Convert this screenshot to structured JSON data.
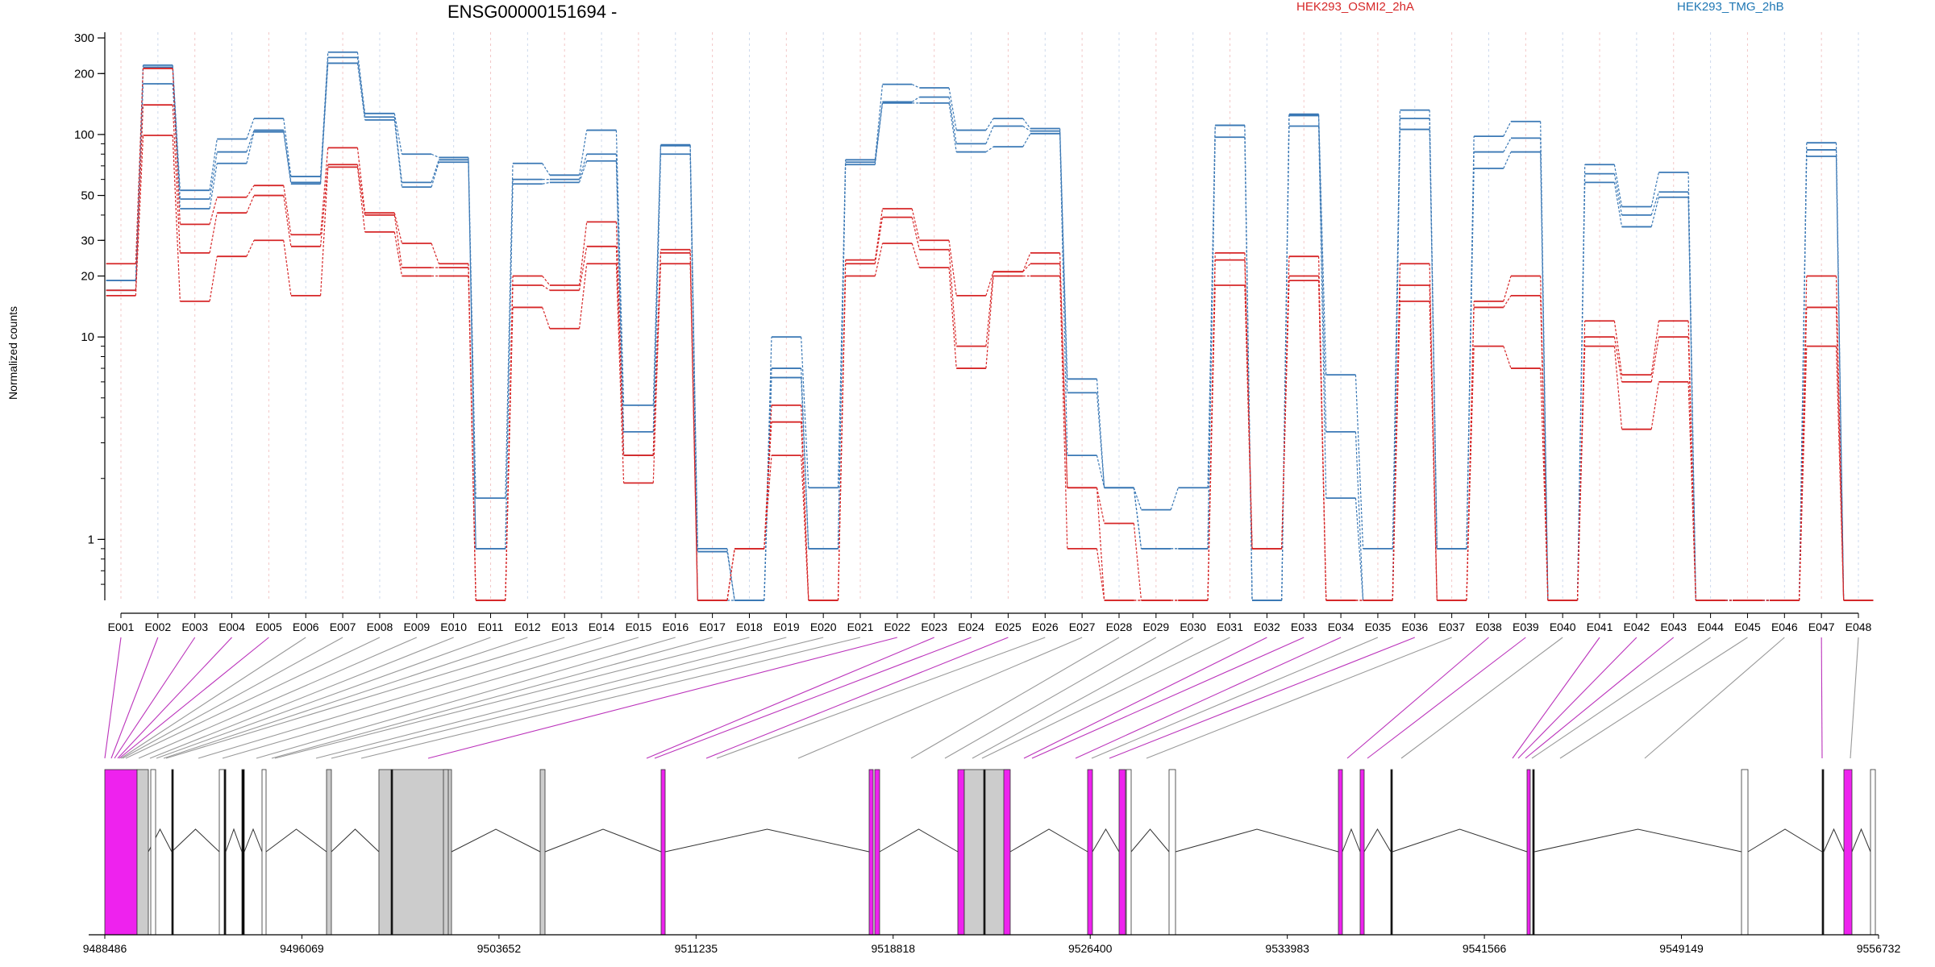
{
  "chart_data": {
    "type": "line",
    "title": "ENSG00000151694 -",
    "ylabel": "Normalized counts",
    "yscale": "log",
    "ylim": [
      0.5,
      320
    ],
    "yticks": [
      {
        "v": 1,
        "label": "1"
      },
      {
        "v": 10,
        "label": "10"
      },
      {
        "v": 20,
        "label": "20"
      },
      {
        "v": 30,
        "label": "30"
      },
      {
        "v": 50,
        "label": "50"
      },
      {
        "v": 100,
        "label": "100"
      },
      {
        "v": 200,
        "label": "200"
      },
      {
        "v": 300,
        "label": "300"
      }
    ],
    "categories": [
      "E001",
      "E002",
      "E003",
      "E004",
      "E005",
      "E006",
      "E007",
      "E008",
      "E009",
      "E010",
      "E011",
      "E012",
      "E013",
      "E014",
      "E015",
      "E016",
      "E017",
      "E018",
      "E019",
      "E020",
      "E021",
      "E022",
      "E023",
      "E024",
      "E025",
      "E026",
      "E027",
      "E028",
      "E029",
      "E030",
      "E031",
      "E032",
      "E033",
      "E034",
      "E035",
      "E036",
      "E037",
      "E038",
      "E039",
      "E040",
      "E041",
      "E042",
      "E043",
      "E044",
      "E045",
      "E046",
      "E047",
      "E048"
    ],
    "legend": [
      {
        "name": "HEK293_OSMI2_2hA",
        "color": "#d62728"
      },
      {
        "name": "HEK293_TMG_2hB",
        "color": "#1f77b4"
      }
    ],
    "series": [
      {
        "group": "HEK293_TMG_2hB",
        "color": "#3a78b5",
        "values": [
          19,
          220,
          53,
          95,
          120,
          62,
          255,
          127,
          80,
          77,
          1.6,
          72,
          63,
          105,
          4.6,
          89,
          0.9,
          0.5,
          10,
          1.8,
          75,
          177,
          170,
          105,
          120,
          107,
          6.2,
          1.8,
          1.4,
          1.8,
          111,
          0.5,
          126,
          6.5,
          0.9,
          132,
          0.9,
          98,
          116,
          0.5,
          71,
          44,
          65,
          0.5,
          0.5,
          0.5,
          91,
          0.5
        ]
      },
      {
        "group": "HEK293_TMG_2hB",
        "color": "#3a78b5",
        "values": [
          19,
          215,
          48,
          82,
          105,
          58,
          240,
          122,
          58,
          75,
          0.9,
          60,
          60,
          80,
          3.4,
          88,
          0.87,
          0.5,
          7,
          0.9,
          73,
          145,
          153,
          90,
          110,
          104,
          5.3,
          1.8,
          0.9,
          0.9,
          111,
          0.5,
          124,
          3.4,
          0.5,
          120,
          0.9,
          82,
          96,
          0.5,
          64,
          40,
          52,
          0.5,
          0.5,
          0.5,
          84,
          0.5
        ]
      },
      {
        "group": "HEK293_TMG_2hB",
        "color": "#3a78b5",
        "values": [
          17,
          178,
          43,
          72,
          103,
          57,
          225,
          118,
          55,
          73,
          0.9,
          57,
          58,
          74,
          2.6,
          80,
          0.5,
          0.5,
          6.3,
          0.9,
          71,
          143,
          143,
          82,
          87,
          101,
          2.6,
          1.8,
          0.9,
          0.9,
          97,
          0.5,
          110,
          1.6,
          0.5,
          106,
          0.9,
          68,
          82,
          0.5,
          58,
          35,
          49,
          0.5,
          0.5,
          0.5,
          78,
          0.5
        ]
      },
      {
        "group": "HEK293_OSMI2_2hA",
        "color": "#d62728",
        "values": [
          23,
          212,
          36,
          49,
          56,
          32,
          86,
          41,
          29,
          23,
          0.5,
          20,
          18,
          37,
          2.6,
          27,
          0.5,
          0.9,
          4.6,
          0.5,
          24,
          43,
          30,
          16,
          21,
          26,
          1.8,
          1.2,
          0.5,
          0.5,
          26,
          0.9,
          25,
          0.5,
          0.5,
          23,
          0.5,
          15,
          20,
          0.5,
          12,
          6.5,
          12,
          0.5,
          0.5,
          0.5,
          20,
          0.5
        ]
      },
      {
        "group": "HEK293_OSMI2_2hA",
        "color": "#d62728",
        "values": [
          17,
          140,
          26,
          41,
          50,
          28,
          71,
          40,
          22,
          22,
          0.5,
          18,
          17,
          28,
          2.6,
          26,
          0.5,
          0.9,
          3.8,
          0.5,
          23,
          39,
          27,
          9,
          21,
          23,
          1.8,
          0.5,
          0.5,
          0.5,
          24,
          0.9,
          20,
          0.5,
          0.5,
          18,
          0.5,
          14,
          16,
          0.5,
          10,
          6,
          10,
          0.5,
          0.5,
          0.5,
          14,
          0.5
        ]
      },
      {
        "group": "HEK293_OSMI2_2hA",
        "color": "#d62728",
        "values": [
          16,
          99,
          15,
          25,
          30,
          16,
          69,
          33,
          20,
          20,
          0.5,
          14,
          11,
          23,
          1.9,
          23,
          0.5,
          0.9,
          2.6,
          0.5,
          20,
          29,
          22,
          7,
          20,
          20,
          0.9,
          0.5,
          0.5,
          0.5,
          18,
          0.9,
          19,
          0.5,
          0.5,
          15,
          0.5,
          9,
          7,
          0.5,
          9,
          3.5,
          6,
          0.5,
          0.5,
          0.5,
          9,
          0.5
        ]
      }
    ],
    "genomic_ticks": [
      "9488486",
      "9496069",
      "9503652",
      "9511235",
      "9518818",
      "9526400",
      "9533983",
      "9541566",
      "9549149",
      "9556732"
    ]
  }
}
